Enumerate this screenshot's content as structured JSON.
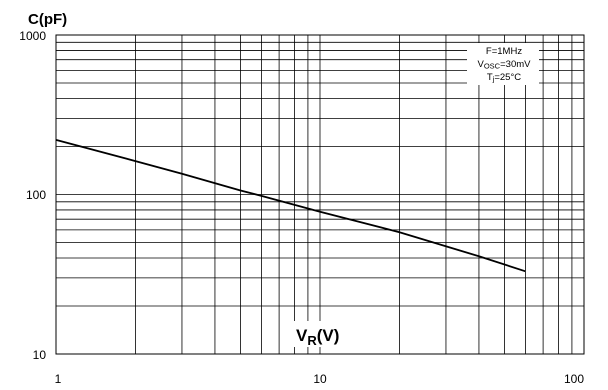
{
  "chart_data": {
    "type": "line",
    "title": "",
    "ylabel": "C(pF)",
    "xlabel_main": "V",
    "xlabel_sub": "R",
    "xlabel_unit": "(V)",
    "xscale": "log",
    "yscale": "log",
    "xlim": [
      1,
      100
    ],
    "ylim": [
      10,
      1000
    ],
    "grid": true,
    "x_ticks": [
      "1",
      "10",
      "100"
    ],
    "y_ticks": [
      "10",
      "100",
      "1000"
    ],
    "annotations": {
      "line1": "F=1MHz",
      "line2_main": "V",
      "line2_sub": "OSC",
      "line2_rest": "=30mV",
      "line3_main": "T",
      "line3_sub": "j",
      "line3_rest": "=25°C",
      "placement": "top-right"
    },
    "series": [
      {
        "x": [
          1,
          2,
          3,
          5,
          6,
          10,
          20,
          40,
          60
        ],
        "y": [
          220,
          162,
          135,
          106,
          98,
          78,
          58,
          41,
          33
        ]
      }
    ]
  }
}
